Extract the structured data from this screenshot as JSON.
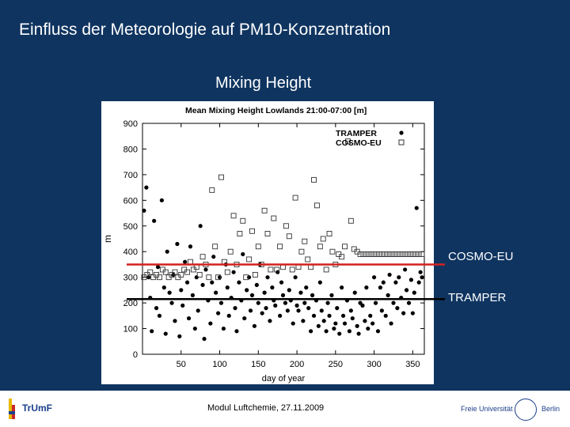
{
  "slide": {
    "title": "Einfluss der Meteorologie auf  PM10-Konzentration",
    "subtitle": "Mixing Height"
  },
  "chart_data": {
    "type": "scatter",
    "title": "Mean Mixing Height Lowlands 21:00-07:00 [m]",
    "xlabel": "day of year",
    "ylabel": "m",
    "xlim": [
      0,
      365
    ],
    "ylim": [
      0,
      900
    ],
    "xticks": [
      50,
      100,
      150,
      200,
      250,
      300,
      350
    ],
    "yticks": [
      0,
      100,
      200,
      300,
      400,
      500,
      600,
      700,
      800,
      900
    ],
    "legend_position": "top-right",
    "series": [
      {
        "name": "TRAMPER",
        "marker": "filled-circle",
        "color": "#000000",
        "x": [
          2,
          5,
          8,
          10,
          12,
          15,
          18,
          20,
          22,
          25,
          28,
          30,
          32,
          35,
          38,
          40,
          42,
          45,
          48,
          50,
          52,
          55,
          58,
          60,
          62,
          65,
          68,
          70,
          72,
          75,
          78,
          80,
          82,
          85,
          88,
          90,
          92,
          95,
          98,
          100,
          102,
          105,
          108,
          110,
          112,
          115,
          118,
          120,
          122,
          125,
          128,
          130,
          132,
          135,
          138,
          140,
          142,
          145,
          148,
          150,
          152,
          155,
          158,
          160,
          162,
          165,
          168,
          170,
          172,
          175,
          178,
          180,
          182,
          185,
          188,
          190,
          192,
          195,
          198,
          200,
          202,
          205,
          208,
          210,
          212,
          215,
          218,
          220,
          222,
          225,
          228,
          230,
          232,
          235,
          238,
          240,
          242,
          245,
          248,
          250,
          252,
          255,
          258,
          260,
          262,
          265,
          268,
          270,
          272,
          275,
          278,
          280,
          282,
          285,
          288,
          290,
          292,
          295,
          298,
          300,
          302,
          305,
          308,
          310,
          312,
          315,
          318,
          320,
          322,
          325,
          328,
          330,
          332,
          335,
          338,
          340,
          342,
          345,
          348,
          350,
          352,
          355,
          358,
          360,
          362
        ],
        "y": [
          560,
          650,
          300,
          220,
          90,
          520,
          180,
          340,
          150,
          600,
          260,
          80,
          400,
          240,
          200,
          310,
          130,
          430,
          70,
          250,
          190,
          360,
          280,
          140,
          420,
          230,
          100,
          300,
          170,
          500,
          270,
          60,
          330,
          210,
          120,
          280,
          380,
          240,
          160,
          300,
          200,
          100,
          350,
          260,
          150,
          220,
          320,
          180,
          90,
          280,
          210,
          390,
          140,
          250,
          300,
          170,
          230,
          110,
          270,
          200,
          350,
          160,
          240,
          180,
          300,
          130,
          260,
          210,
          190,
          320,
          150,
          280,
          230,
          200,
          170,
          250,
          210,
          120,
          300,
          190,
          170,
          240,
          130,
          200,
          260,
          180,
          90,
          230,
          150,
          210,
          110,
          280,
          170,
          130,
          90,
          200,
          150,
          230,
          100,
          120,
          180,
          80,
          260,
          150,
          120,
          210,
          90,
          170,
          140,
          240,
          110,
          80,
          200,
          190,
          130,
          260,
          100,
          150,
          120,
          300,
          200,
          90,
          260,
          170,
          280,
          150,
          230,
          310,
          120,
          200,
          280,
          180,
          300,
          220,
          160,
          330,
          250,
          200,
          290,
          160,
          240,
          570,
          280,
          320,
          300
        ]
      },
      {
        "name": "COSMO-EU",
        "marker": "open-square",
        "color": "#000000",
        "x": [
          2,
          6,
          10,
          14,
          18,
          22,
          26,
          30,
          34,
          38,
          42,
          46,
          50,
          54,
          58,
          62,
          66,
          70,
          74,
          78,
          82,
          86,
          90,
          94,
          98,
          102,
          106,
          110,
          114,
          118,
          122,
          126,
          130,
          134,
          138,
          142,
          146,
          150,
          154,
          158,
          162,
          166,
          170,
          174,
          178,
          182,
          186,
          190,
          194,
          198,
          202,
          206,
          210,
          214,
          218,
          222,
          226,
          230,
          234,
          238,
          242,
          246,
          250,
          254,
          258,
          262,
          266,
          270,
          274,
          278,
          282,
          286,
          290,
          294,
          298,
          302,
          306,
          310,
          314,
          318,
          322,
          326,
          330,
          334,
          338,
          342,
          346,
          350,
          354,
          358,
          362
        ],
        "y": [
          300,
          310,
          320,
          300,
          310,
          300,
          330,
          320,
          300,
          310,
          320,
          300,
          310,
          330,
          320,
          360,
          330,
          340,
          310,
          380,
          350,
          300,
          640,
          420,
          300,
          690,
          360,
          320,
          400,
          540,
          350,
          470,
          520,
          300,
          370,
          480,
          310,
          420,
          350,
          560,
          470,
          330,
          530,
          330,
          420,
          340,
          500,
          460,
          330,
          610,
          340,
          400,
          440,
          370,
          340,
          680,
          580,
          420,
          450,
          330,
          470,
          400,
          350,
          390,
          380,
          420,
          830,
          520,
          410,
          400,
          390,
          390,
          390,
          390,
          390,
          390,
          390,
          390,
          390,
          390,
          390,
          390,
          390,
          390,
          390,
          390,
          390,
          390,
          390,
          390,
          390
        ]
      }
    ],
    "reference_lines": [
      {
        "label": "COSMO-EU",
        "value": 350,
        "color": "#d42020"
      },
      {
        "label": "TRAMPER",
        "value": 215,
        "color": "#000000"
      }
    ]
  },
  "footer": {
    "text": "Modul Luftchemie, 27.11.2009",
    "logo_left": "TrUmF",
    "logo_right_a": "Freie Universität",
    "logo_right_b": "Berlin"
  }
}
